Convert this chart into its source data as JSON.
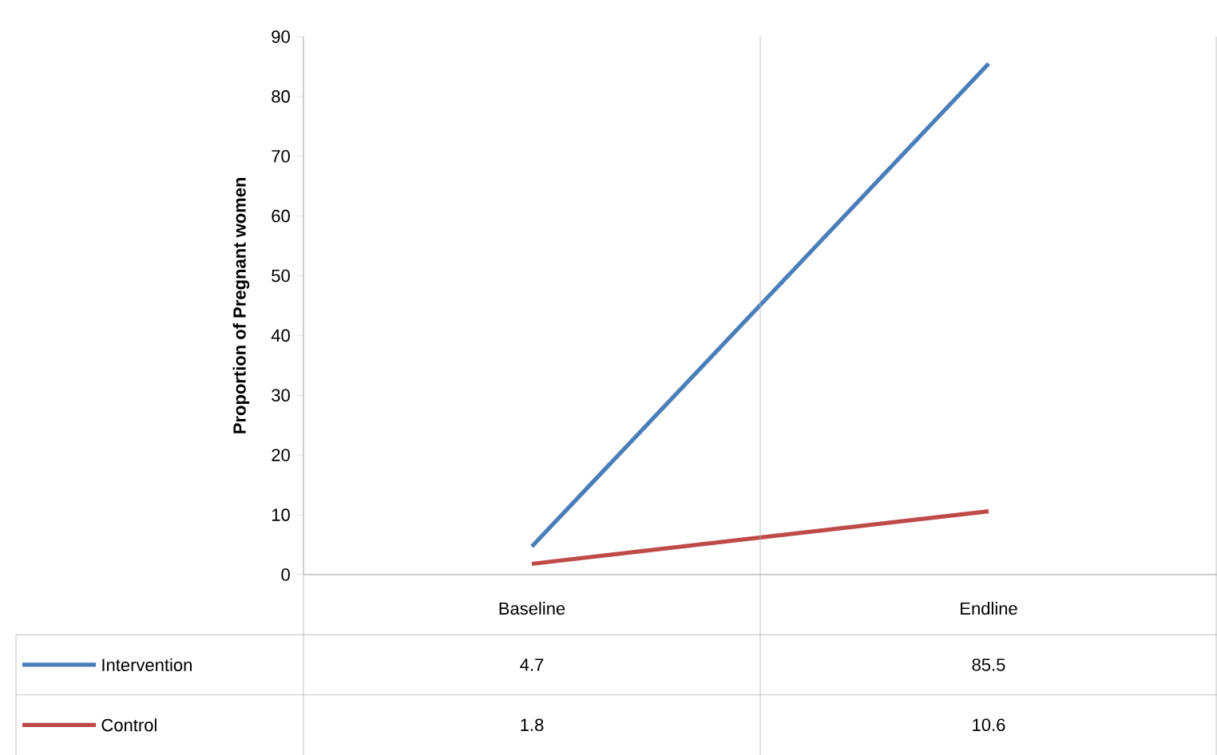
{
  "chart_data": {
    "type": "line",
    "ylabel": "Proportion of Pregnant women",
    "categories": [
      "Baseline",
      "Endline"
    ],
    "series": [
      {
        "name": "Intervention",
        "color": "#4a7ebb",
        "values": [
          4.7,
          85.5
        ]
      },
      {
        "name": "Control",
        "color": "#be4b48",
        "values": [
          1.8,
          10.6
        ]
      }
    ],
    "ylim": [
      0,
      90
    ],
    "yticks": [
      0,
      10,
      20,
      30,
      40,
      50,
      60,
      70,
      80,
      90
    ],
    "data_labels": true,
    "legend": "bottom"
  }
}
